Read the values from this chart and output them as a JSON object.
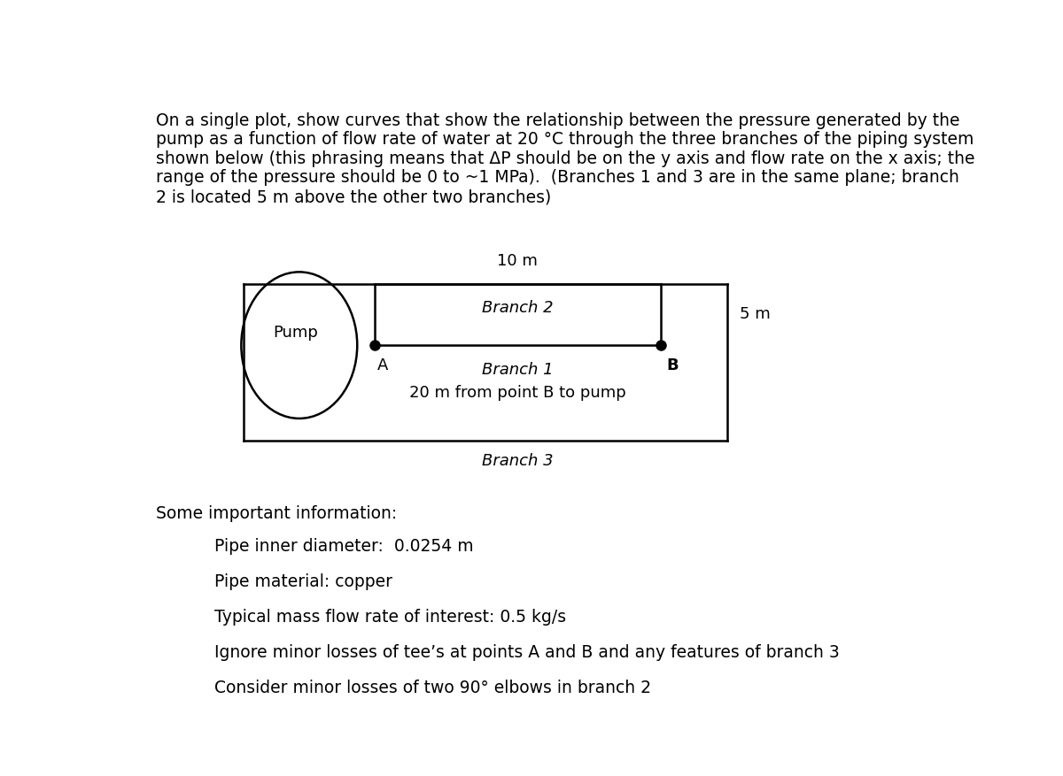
{
  "title_text": "On a single plot, show curves that show the relationship between the pressure generated by the\npump as a function of flow rate of water at 20 °C through the three branches of the piping system\nshown below (this phrasing means that ΔP should be on the y axis and flow rate on the x axis; the\nrange of the pressure should be 0 to ~1 MPa).  (Branches 1 and 3 are in the same plane; branch\n2 is located 5 m above the other two branches)",
  "info_header": "Some important information:",
  "info_items": [
    "Pipe inner diameter:  0.0254 m",
    "Pipe material: copper",
    "Typical mass flow rate of interest: 0.5 kg/s",
    "Ignore minor losses of tee’s at points A and B and any features of branch 3",
    "Consider minor losses of two 90° elbows in branch 2"
  ],
  "diagram": {
    "pump_label": "Pump",
    "branch1_label": "Branch 1",
    "branch2_label": "Branch 2",
    "branch3_label": "Branch 3",
    "point_a": "A",
    "point_b": "B",
    "top_label": "10 m",
    "right_label": "5 m",
    "bottom_label": "20 m from point B to pump"
  },
  "bg_color": "#ffffff",
  "text_color": "#000000",
  "title_fontsize": 13.5,
  "info_fontsize": 13.5,
  "diagram_fontsize": 13.0
}
